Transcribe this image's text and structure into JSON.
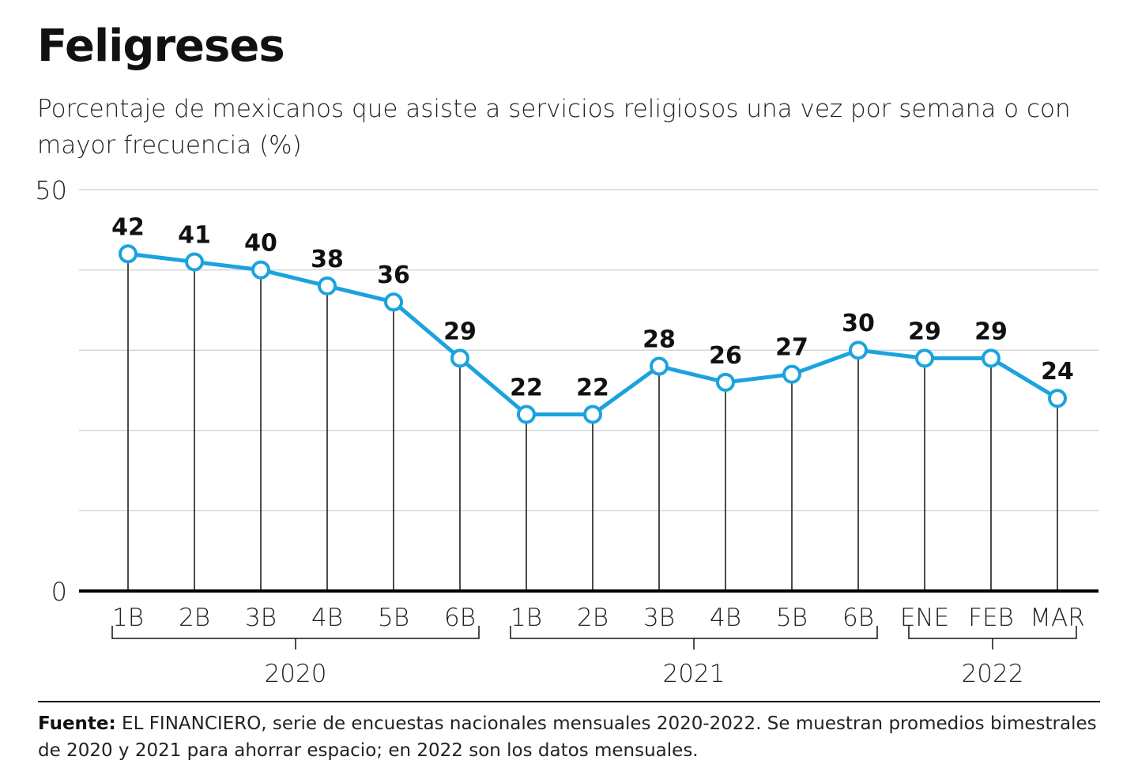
{
  "title": "Feligreses",
  "subtitle": "Porcentaje de mexicanos que asiste a servicios religiosos una vez por semana o con mayor frecuencia (%)",
  "footer": {
    "label": "Fuente:",
    "text": "EL FINANCIERO, serie de encuestas nacionales mensuales 2020-2022. Se muestran promedios bimestrales de 2020 y 2021 para ahorrar espacio; en 2022 son los datos mensuales."
  },
  "chart_data": {
    "type": "line",
    "categories": [
      "1B",
      "2B",
      "3B",
      "4B",
      "5B",
      "6B",
      "1B",
      "2B",
      "3B",
      "4B",
      "5B",
      "6B",
      "ENE",
      "FEB",
      "MAR"
    ],
    "groups": [
      {
        "label": "2020",
        "start": 0,
        "end": 5
      },
      {
        "label": "2021",
        "start": 6,
        "end": 11
      },
      {
        "label": "2022",
        "start": 12,
        "end": 14
      }
    ],
    "values": [
      42,
      41,
      40,
      38,
      36,
      29,
      22,
      22,
      28,
      26,
      27,
      30,
      29,
      29,
      24
    ],
    "ylim": [
      0,
      50
    ],
    "yticks": [
      0,
      50
    ],
    "gridlines": [
      10,
      20,
      30,
      40,
      50
    ],
    "grid": true,
    "data_labels": true,
    "line_color": "#1ba3de"
  }
}
